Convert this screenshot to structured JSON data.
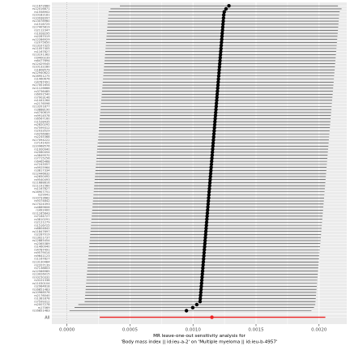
{
  "chart_data": {
    "type": "forest",
    "title": "",
    "xlabel_lines": [
      "MR leave-one-out sensitivity analysis for",
      "'Body mass index || id:ieu-a-2' on 'Multiple myeloma || id:ieu-b-4957'"
    ],
    "xlim": [
      -0.00012,
      0.00222
    ],
    "x_ticks": [
      0.0,
      0.0005,
      0.001,
      0.0015,
      0.002
    ],
    "x_tick_labels": [
      "0.0000",
      "0.0005",
      "0.0010",
      "0.0015",
      "0.0020"
    ],
    "zero_line": 0,
    "colors": {
      "panel_bg": "#ebebeb",
      "grid": "#ffffff",
      "point": "#000000",
      "ci": "#333333",
      "all_estimate": "#ee2222",
      "zero_line": "#7f7f7f"
    },
    "snps": [
      {
        "label": "rs11672660",
        "b": 0.001285,
        "lo": 0.00042,
        "hi": 0.00215
      },
      {
        "label": "rs12016871",
        "b": 0.001262,
        "lo": 0.000345,
        "hi": 0.002179
      },
      {
        "label": "rs1558902",
        "b": 0.001248,
        "lo": 0.000332,
        "hi": 0.002164
      },
      {
        "label": "rs10182181",
        "b": 0.001244,
        "lo": 0.000328,
        "hi": 0.00216
      },
      {
        "label": "rs10938397",
        "b": 0.001242,
        "lo": 0.000326,
        "hi": 0.002158
      },
      {
        "label": "rs13078960",
        "b": 0.00124,
        "lo": 0.000324,
        "hi": 0.002156
      },
      {
        "label": "rs1516725",
        "b": 0.001238,
        "lo": 0.000322,
        "hi": 0.002154
      },
      {
        "label": "rs17405819",
        "b": 0.001236,
        "lo": 0.00032,
        "hi": 0.002152
      },
      {
        "label": "rs2112347",
        "b": 0.001234,
        "lo": 0.000318,
        "hi": 0.00215
      },
      {
        "label": "rs1928295",
        "b": 0.001232,
        "lo": 0.000316,
        "hi": 0.002148
      },
      {
        "label": "rs2287019",
        "b": 0.00123,
        "lo": 0.000314,
        "hi": 0.002146
      },
      {
        "label": "rs12286929",
        "b": 0.001228,
        "lo": 0.000312,
        "hi": 0.002144
      },
      {
        "label": "rs2075650",
        "b": 0.001226,
        "lo": 0.00031,
        "hi": 0.002142
      },
      {
        "label": "rs13107325",
        "b": 0.001224,
        "lo": 0.000308,
        "hi": 0.00214
      },
      {
        "label": "rs11057405",
        "b": 0.001222,
        "lo": 0.000306,
        "hi": 0.002138
      },
      {
        "label": "rs1167827",
        "b": 0.00122,
        "lo": 0.000304,
        "hi": 0.002136
      },
      {
        "label": "rs13191362",
        "b": 0.001218,
        "lo": 0.000302,
        "hi": 0.002134
      },
      {
        "label": "rs9400239",
        "b": 0.001216,
        "lo": 0.0003,
        "hi": 0.002132
      },
      {
        "label": "rs6477694",
        "b": 0.001214,
        "lo": 0.000298,
        "hi": 0.00213
      },
      {
        "label": "rs12429545",
        "b": 0.001212,
        "lo": 0.000296,
        "hi": 0.002128
      },
      {
        "label": "rs10132280",
        "b": 0.00121,
        "lo": 0.000294,
        "hi": 0.002126
      },
      {
        "label": "rs1808579",
        "b": 0.001208,
        "lo": 0.000292,
        "hi": 0.002124
      },
      {
        "label": "rs12940622",
        "b": 0.001206,
        "lo": 0.00029,
        "hi": 0.002122
      },
      {
        "label": "rs16951275",
        "b": 0.001204,
        "lo": 0.000288,
        "hi": 0.00212
      },
      {
        "label": "rs1460676",
        "b": 0.001202,
        "lo": 0.000286,
        "hi": 0.002118
      },
      {
        "label": "rs4787491",
        "b": 0.0012,
        "lo": 0.000284,
        "hi": 0.002116
      },
      {
        "label": "rs17001654",
        "b": 0.001198,
        "lo": 0.000282,
        "hi": 0.002114
      },
      {
        "label": "rs11126666",
        "b": 0.001196,
        "lo": 0.00028,
        "hi": 0.002112
      },
      {
        "label": "rs3736485",
        "b": 0.001194,
        "lo": 0.000278,
        "hi": 0.00211
      },
      {
        "label": "rs6091540",
        "b": 0.001192,
        "lo": 0.000276,
        "hi": 0.002108
      },
      {
        "label": "rs7903146",
        "b": 0.00119,
        "lo": 0.000274,
        "hi": 0.002106
      },
      {
        "label": "rs1441264",
        "b": 0.001188,
        "lo": 0.000272,
        "hi": 0.002104
      },
      {
        "label": "rs2176598",
        "b": 0.001186,
        "lo": 0.00027,
        "hi": 0.002102
      },
      {
        "label": "rs13201877",
        "b": 0.001184,
        "lo": 0.000268,
        "hi": 0.0021
      },
      {
        "label": "rs3888190",
        "b": 0.001182,
        "lo": 0.000266,
        "hi": 0.002098
      },
      {
        "label": "rs4740619",
        "b": 0.00118,
        "lo": 0.000264,
        "hi": 0.002096
      },
      {
        "label": "rs9914578",
        "b": 0.001178,
        "lo": 0.000262,
        "hi": 0.002094
      },
      {
        "label": "rs6567160",
        "b": 0.001176,
        "lo": 0.00026,
        "hi": 0.002092
      },
      {
        "label": "rs1528435",
        "b": 0.001174,
        "lo": 0.000258,
        "hi": 0.00209
      },
      {
        "label": "rs2820292",
        "b": 0.001172,
        "lo": 0.000256,
        "hi": 0.002088
      },
      {
        "label": "rs7599312",
        "b": 0.00117,
        "lo": 0.000254,
        "hi": 0.002086
      },
      {
        "label": "rs2033529",
        "b": 0.001168,
        "lo": 0.000252,
        "hi": 0.002084
      },
      {
        "label": "rs4256980",
        "b": 0.001166,
        "lo": 0.00025,
        "hi": 0.002082
      },
      {
        "label": "rs2245368",
        "b": 0.001164,
        "lo": 0.000248,
        "hi": 0.00208
      },
      {
        "label": "rs17094222",
        "b": 0.001162,
        "lo": 0.000246,
        "hi": 0.002078
      },
      {
        "label": "rs7141420",
        "b": 0.00116,
        "lo": 0.000244,
        "hi": 0.002076
      },
      {
        "label": "rs10968576",
        "b": 0.001158,
        "lo": 0.000242,
        "hi": 0.002074
      },
      {
        "label": "rs1000940",
        "b": 0.001156,
        "lo": 0.00024,
        "hi": 0.002072
      },
      {
        "label": "rs2080454",
        "b": 0.001154,
        "lo": 0.000238,
        "hi": 0.00207
      },
      {
        "label": "rs3849570",
        "b": 0.001152,
        "lo": 0.000236,
        "hi": 0.002068
      },
      {
        "label": "rs7715256",
        "b": 0.00115,
        "lo": 0.000234,
        "hi": 0.002066
      },
      {
        "label": "rs6465468",
        "b": 0.001148,
        "lo": 0.000232,
        "hi": 0.002064
      },
      {
        "label": "rs7243357",
        "b": 0.001146,
        "lo": 0.00023,
        "hi": 0.002062
      },
      {
        "label": "rs9925964",
        "b": 0.001144,
        "lo": 0.000228,
        "hi": 0.00206
      },
      {
        "label": "rs3817334",
        "b": 0.001142,
        "lo": 0.000226,
        "hi": 0.002058
      },
      {
        "label": "rs12446632",
        "b": 0.00114,
        "lo": 0.000224,
        "hi": 0.002056
      },
      {
        "label": "rs2650492",
        "b": 0.001138,
        "lo": 0.000222,
        "hi": 0.002054
      },
      {
        "label": "rs9540493",
        "b": 0.001136,
        "lo": 0.00022,
        "hi": 0.002052
      },
      {
        "label": "rs11688816",
        "b": 0.001134,
        "lo": 0.000218,
        "hi": 0.00205
      },
      {
        "label": "rs11191560",
        "b": 0.001132,
        "lo": 0.000216,
        "hi": 0.002048
      },
      {
        "label": "rs1167827b",
        "b": 0.00113,
        "lo": 0.000214,
        "hi": 0.002046
      },
      {
        "label": "rs16907751",
        "b": 0.001128,
        "lo": 0.000212,
        "hi": 0.002044
      },
      {
        "label": "rs29941",
        "b": 0.001126,
        "lo": 0.00021,
        "hi": 0.002042
      },
      {
        "label": "rs10733682",
        "b": 0.001124,
        "lo": 0.000208,
        "hi": 0.00204
      },
      {
        "label": "rs9374842",
        "b": 0.001122,
        "lo": 0.000206,
        "hi": 0.002038
      },
      {
        "label": "rs17024393",
        "b": 0.00112,
        "lo": 0.000204,
        "hi": 0.002036
      },
      {
        "label": "rs4889606",
        "b": 0.001118,
        "lo": 0.000202,
        "hi": 0.002034
      },
      {
        "label": "rs492400",
        "b": 0.001116,
        "lo": 0.0002,
        "hi": 0.002032
      },
      {
        "label": "rs11165643",
        "b": 0.001114,
        "lo": 0.000198,
        "hi": 0.00203
      },
      {
        "label": "rs7164727",
        "b": 0.001112,
        "lo": 0.000196,
        "hi": 0.002028
      },
      {
        "label": "rs3810291",
        "b": 0.00111,
        "lo": 0.000194,
        "hi": 0.002026
      },
      {
        "label": "rs2121279",
        "b": 0.001108,
        "lo": 0.000192,
        "hi": 0.002024
      },
      {
        "label": "rs1516725b",
        "b": 0.001106,
        "lo": 0.00019,
        "hi": 0.002022
      },
      {
        "label": "rs6804842",
        "b": 0.001104,
        "lo": 0.000188,
        "hi": 0.00202
      },
      {
        "label": "rs11847697",
        "b": 0.001102,
        "lo": 0.000186,
        "hi": 0.002018
      },
      {
        "label": "rs2287019b",
        "b": 0.0011,
        "lo": 0.000184,
        "hi": 0.002016
      },
      {
        "label": "rs13021737",
        "b": 0.001098,
        "lo": 0.000182,
        "hi": 0.002014
      },
      {
        "label": "rs12885454",
        "b": 0.001096,
        "lo": 0.00018,
        "hi": 0.002012
      },
      {
        "label": "rs2365389",
        "b": 0.001094,
        "lo": 0.000178,
        "hi": 0.00201
      },
      {
        "label": "rs1460940",
        "b": 0.001092,
        "lo": 0.000176,
        "hi": 0.002008
      },
      {
        "label": "rs4787491b",
        "b": 0.00109,
        "lo": 0.000174,
        "hi": 0.002006
      },
      {
        "label": "rs9579014",
        "b": 0.001088,
        "lo": 0.000172,
        "hi": 0.002004
      },
      {
        "label": "rs9641123",
        "b": 0.001086,
        "lo": 0.00017,
        "hi": 0.002002
      },
      {
        "label": "rs1167827c",
        "b": 0.001084,
        "lo": 0.000168,
        "hi": 0.002
      },
      {
        "label": "rs13130484",
        "b": 0.001082,
        "lo": 0.000166,
        "hi": 0.001998
      },
      {
        "label": "rs2207139",
        "b": 0.00108,
        "lo": 0.000164,
        "hi": 0.001996
      },
      {
        "label": "rs7138803",
        "b": 0.001078,
        "lo": 0.000162,
        "hi": 0.001994
      },
      {
        "label": "rs12566985",
        "b": 0.001076,
        "lo": 0.00016,
        "hi": 0.001992
      },
      {
        "label": "rs13026015",
        "b": 0.001074,
        "lo": 0.000158,
        "hi": 0.00199
      },
      {
        "label": "rs10150332",
        "b": 0.001072,
        "lo": 0.000156,
        "hi": 0.001988
      },
      {
        "label": "rs3101336",
        "b": 0.00107,
        "lo": 0.000154,
        "hi": 0.001986
      },
      {
        "label": "rs11030104",
        "b": 0.001068,
        "lo": 0.000152,
        "hi": 0.001984
      },
      {
        "label": "rs2984618",
        "b": 0.001066,
        "lo": 0.00015,
        "hi": 0.001982
      },
      {
        "label": "rs16851483",
        "b": 0.001064,
        "lo": 0.000148,
        "hi": 0.00198
      },
      {
        "label": "rs10968576b",
        "b": 0.001062,
        "lo": 0.000146,
        "hi": 0.001978
      },
      {
        "label": "rs2176040",
        "b": 0.00106,
        "lo": 0.000144,
        "hi": 0.001976
      },
      {
        "label": "rs1381878",
        "b": 0.001058,
        "lo": 0.000142,
        "hi": 0.001974
      },
      {
        "label": "rs7599312b",
        "b": 0.001056,
        "lo": 0.00014,
        "hi": 0.001972
      },
      {
        "label": "rs2007278",
        "b": 0.00103,
        "lo": 9e-05,
        "hi": 0.00197
      },
      {
        "label": "rs17069",
        "b": 0.000998,
        "lo": 6e-05,
        "hi": 0.00196
      },
      {
        "label": "rs16851483",
        "b": 0.000948,
        "lo": 2e-05,
        "hi": 0.00194
      }
    ],
    "all": {
      "label": "All",
      "b": 0.00115,
      "lo": 0.00026,
      "hi": 0.00205
    }
  }
}
